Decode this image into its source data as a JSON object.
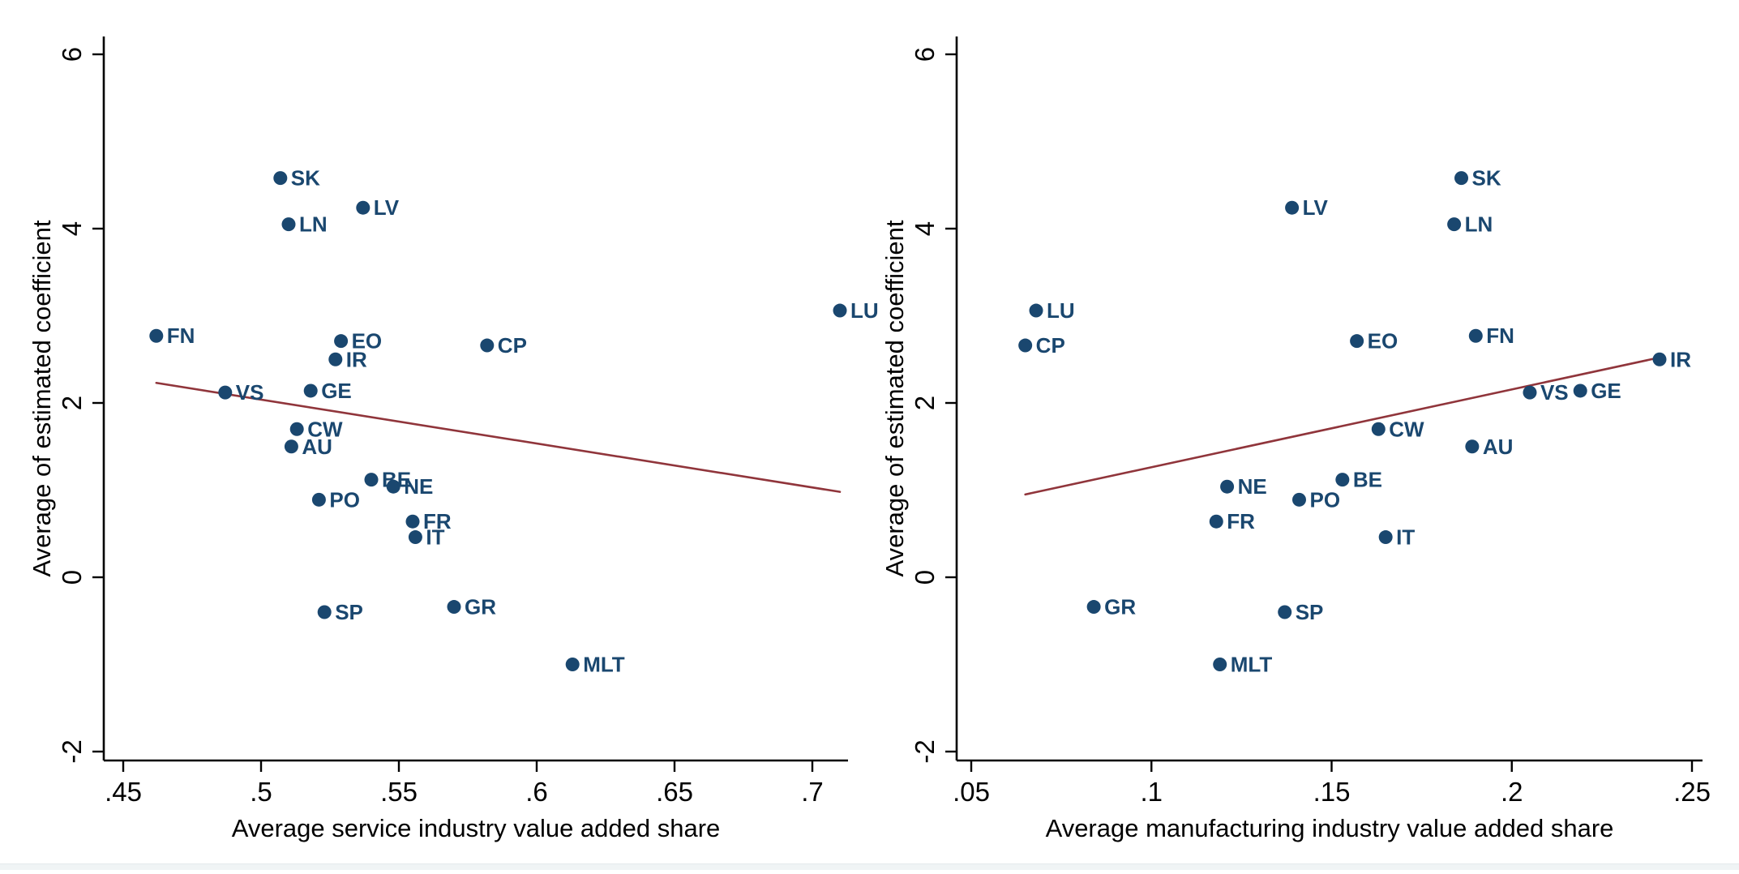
{
  "figure": {
    "background": "#ffffff",
    "marker_color": "#1a476f",
    "point_label_color": "#1a476f",
    "fit_line_color": "#90353b",
    "axis_color": "#000000",
    "tick_label_color": "#000000",
    "footer_strip_color": "#f0f4f5"
  },
  "chart_data": {
    "type": "scatter",
    "ylabel": "Average of estimated coefficient",
    "ylim": [
      -2,
      6
    ],
    "grid": false,
    "y_ticks": [
      {
        "v": 6,
        "label": "6"
      },
      {
        "v": 4,
        "label": "4"
      },
      {
        "v": 2,
        "label": "2"
      },
      {
        "v": 0,
        "label": "0"
      },
      {
        "v": -2,
        "label": "-2"
      }
    ],
    "points": [
      {
        "code": "SK",
        "service": 0.507,
        "manufacturing": 0.186,
        "coef": 4.58
      },
      {
        "code": "LV",
        "service": 0.537,
        "manufacturing": 0.139,
        "coef": 4.24
      },
      {
        "code": "LN",
        "service": 0.51,
        "manufacturing": 0.184,
        "coef": 4.05
      },
      {
        "code": "LU",
        "service": 0.71,
        "manufacturing": 0.068,
        "coef": 3.06
      },
      {
        "code": "FN",
        "service": 0.462,
        "manufacturing": 0.19,
        "coef": 2.77
      },
      {
        "code": "EO",
        "service": 0.529,
        "manufacturing": 0.157,
        "coef": 2.71
      },
      {
        "code": "CP",
        "service": 0.582,
        "manufacturing": 0.065,
        "coef": 2.66
      },
      {
        "code": "IR",
        "service": 0.527,
        "manufacturing": 0.241,
        "coef": 2.5
      },
      {
        "code": "GE",
        "service": 0.518,
        "manufacturing": 0.219,
        "coef": 2.14
      },
      {
        "code": "VS",
        "service": 0.487,
        "manufacturing": 0.205,
        "coef": 2.12
      },
      {
        "code": "CW",
        "service": 0.513,
        "manufacturing": 0.163,
        "coef": 1.7
      },
      {
        "code": "AU",
        "service": 0.511,
        "manufacturing": 0.189,
        "coef": 1.5
      },
      {
        "code": "BE",
        "service": 0.54,
        "manufacturing": 0.153,
        "coef": 1.12
      },
      {
        "code": "NE",
        "service": 0.548,
        "manufacturing": 0.121,
        "coef": 1.04
      },
      {
        "code": "PO",
        "service": 0.521,
        "manufacturing": 0.141,
        "coef": 0.89
      },
      {
        "code": "FR",
        "service": 0.555,
        "manufacturing": 0.118,
        "coef": 0.64
      },
      {
        "code": "IT",
        "service": 0.556,
        "manufacturing": 0.165,
        "coef": 0.46
      },
      {
        "code": "SP",
        "service": 0.523,
        "manufacturing": 0.137,
        "coef": -0.4
      },
      {
        "code": "GR",
        "service": 0.57,
        "manufacturing": 0.084,
        "coef": -0.34
      },
      {
        "code": "MLT",
        "service": 0.613,
        "manufacturing": 0.119,
        "coef": -1.0
      }
    ],
    "charts": [
      {
        "id": "service",
        "x_field": "service",
        "xlabel": "Average service industry value added share",
        "xlim": [
          0.45,
          0.713
        ],
        "x_ticks": [
          {
            "v": 0.45,
            "label": ".45"
          },
          {
            "v": 0.5,
            "label": ".5"
          },
          {
            "v": 0.55,
            "label": ".55"
          },
          {
            "v": 0.6,
            "label": ".6"
          },
          {
            "v": 0.65,
            "label": ".65"
          },
          {
            "v": 0.7,
            "label": ".7"
          }
        ],
        "fit_line": {
          "x1": 0.462,
          "y1": 2.23,
          "x2": 0.71,
          "y2": 0.98
        }
      },
      {
        "id": "manufacturing",
        "x_field": "manufacturing",
        "xlabel": "Average manufacturing industry value added share",
        "xlim": [
          0.05,
          0.253
        ],
        "x_ticks": [
          {
            "v": 0.05,
            "label": ".05"
          },
          {
            "v": 0.1,
            "label": ".1"
          },
          {
            "v": 0.15,
            "label": ".15"
          },
          {
            "v": 0.2,
            "label": ".2"
          },
          {
            "v": 0.25,
            "label": ".25"
          }
        ],
        "fit_line": {
          "x1": 0.065,
          "y1": 0.95,
          "x2": 0.242,
          "y2": 2.53
        }
      }
    ]
  }
}
